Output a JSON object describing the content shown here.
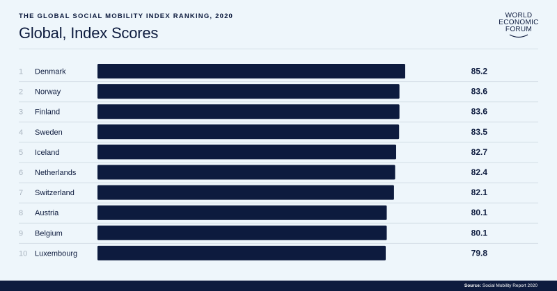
{
  "header": {
    "subtitle": "THE GLOBAL SOCIAL MOBILITY INDEX RANKING, 2020",
    "title": "Global, Index Scores"
  },
  "logo": {
    "lines": [
      "WORLD",
      "ECONOMIC",
      "FORUM"
    ]
  },
  "footer": {
    "source_label": "Source:",
    "source_text": "Social Mobility Report 2020"
  },
  "colors": {
    "background": "#eef6fb",
    "bar": "#0d1b3e",
    "rank_text": "#a9b4bf",
    "separator": "#d3dee6"
  },
  "chart_data": {
    "type": "bar",
    "orientation": "horizontal",
    "title": "Global, Index Scores",
    "subtitle": "THE GLOBAL SOCIAL MOBILITY INDEX RANKING, 2020",
    "xlabel": "",
    "ylabel": "",
    "grid": false,
    "ranks": [
      "1",
      "2",
      "3",
      "4",
      "5",
      "6",
      "7",
      "8",
      "9",
      "10"
    ],
    "categories": [
      "Denmark",
      "Norway",
      "Finland",
      "Sweden",
      "Iceland",
      "Netherlands",
      "Switzerland",
      "Austria",
      "Belgium",
      "Luxembourg"
    ],
    "values": [
      85.2,
      83.6,
      83.6,
      83.5,
      82.7,
      82.4,
      82.1,
      80.1,
      80.1,
      79.8
    ],
    "value_labels": [
      "85.2",
      "83.6",
      "83.6",
      "83.5",
      "82.7",
      "82.4",
      "82.1",
      "80.1",
      "80.1",
      "79.8"
    ],
    "xlim": [
      0,
      85.2
    ]
  }
}
